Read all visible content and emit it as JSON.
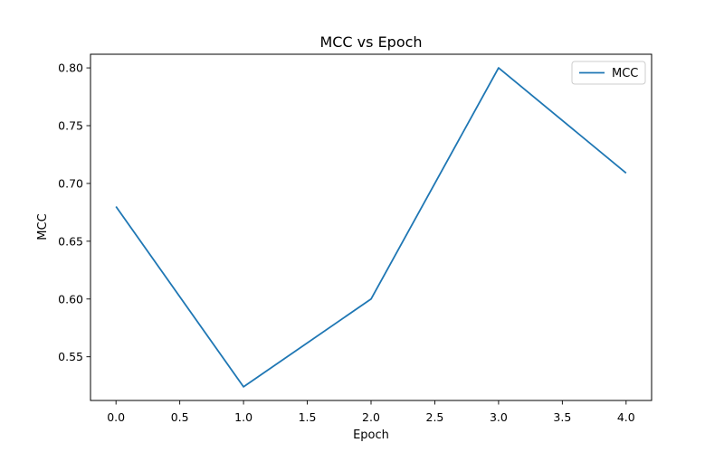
{
  "chart_data": {
    "type": "line",
    "title": "MCC vs Epoch",
    "xlabel": "Epoch",
    "ylabel": "MCC",
    "x": [
      0,
      1,
      2,
      3,
      4
    ],
    "series": [
      {
        "name": "MCC",
        "values": [
          0.68,
          0.524,
          0.6,
          0.8,
          0.709
        ],
        "color": "#1f77b4"
      }
    ],
    "xlim": [
      -0.2,
      4.2
    ],
    "ylim": [
      0.5122,
      0.8118
    ],
    "xticks": [
      0.0,
      0.5,
      1.0,
      1.5,
      2.0,
      2.5,
      3.0,
      3.5,
      4.0
    ],
    "xtick_labels": [
      "0.0",
      "0.5",
      "1.0",
      "1.5",
      "2.0",
      "2.5",
      "3.0",
      "3.5",
      "4.0"
    ],
    "yticks": [
      0.55,
      0.6,
      0.65,
      0.7,
      0.75,
      0.8
    ],
    "ytick_labels": [
      "0.55",
      "0.60",
      "0.65",
      "0.70",
      "0.75",
      "0.80"
    ],
    "grid": false,
    "legend_position": "top-right"
  }
}
